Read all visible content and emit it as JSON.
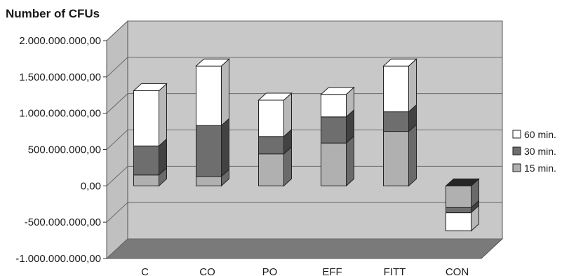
{
  "chart_data": {
    "type": "bar",
    "stacked": true,
    "three_d": true,
    "title": "Number of CFUs",
    "categories": [
      "C",
      "CO",
      "PO",
      "EFF",
      "FITT",
      "CON"
    ],
    "series": [
      {
        "name": "15 min.",
        "color": "#b0b0b0",
        "values": [
          150000000,
          130000000,
          440000000,
          590000000,
          750000000,
          -300000000
        ]
      },
      {
        "name": "30 min.",
        "color": "#6e6e6e",
        "values": [
          400000000,
          700000000,
          240000000,
          360000000,
          270000000,
          -70000000
        ]
      },
      {
        "name": "60 min.",
        "color": "#ffffff",
        "values": [
          760000000,
          820000000,
          500000000,
          310000000,
          630000000,
          -250000000
        ]
      }
    ],
    "negative_cap_color": "#262626",
    "yticks": [
      "2.000.000.000,00",
      "1.500.000.000,00",
      "1.000.000.000,00",
      "500.000.000,00",
      "0,00",
      "-500.000.000,00",
      "-1.000.000.000,00"
    ],
    "ytick_values": [
      2000000000,
      1500000000,
      1000000000,
      500000000,
      0,
      -500000000,
      -1000000000
    ],
    "ylim": [
      -1000000000,
      2000000000
    ],
    "legend_order": [
      "60 min.",
      "30 min.",
      "15 min."
    ],
    "legend_position": "right",
    "grid": true,
    "wall_color": "#c8c8c8",
    "floor_color": "#7a7a7a"
  }
}
